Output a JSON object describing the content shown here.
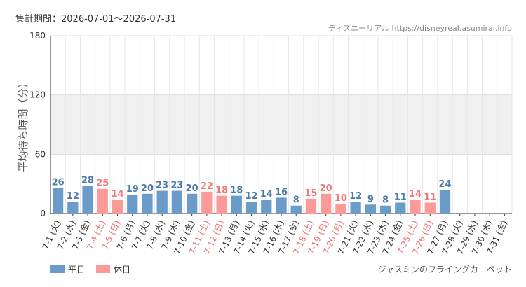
{
  "header": {
    "period": "集計期間：2026-07-01～2026-07-31",
    "site": "ディズニーリアル https://disneyreal.asumirai.info"
  },
  "chart_data": {
    "type": "bar",
    "ylabel": "平均待ち時間（分）",
    "ylim": [
      0,
      180
    ],
    "yticks": [
      "0",
      "60",
      "120",
      "180"
    ],
    "categories": [
      "7-1 (火)",
      "7-2 (水)",
      "7-3 (金)",
      "7-4 (土)",
      "7-5 (日)",
      "7-6 (月)",
      "7-7 (火)",
      "7-8 (水)",
      "7-9 (木)",
      "7-10 (金)",
      "7-11 (土)",
      "7-12 (日)",
      "7-13 (月)",
      "7-14 (火)",
      "7-15 (水)",
      "7-16 (木)",
      "7-17 (金)",
      "7-18 (土)",
      "7-19 (日)",
      "7-20 (月)",
      "7-21 (火)",
      "7-22 (水)",
      "7-23 (木)",
      "7-24 (金)",
      "7-25 (土)",
      "7-26 (日)",
      "7-27 (月)",
      "7-28 (火)",
      "7-29 (水)",
      "7-30 (木)",
      "7-31 (金)"
    ],
    "values": [
      26,
      12,
      28,
      25,
      14,
      19,
      20,
      23,
      23,
      20,
      22,
      18,
      18,
      12,
      14,
      16,
      8,
      15,
      20,
      10,
      12,
      9,
      8,
      11,
      14,
      11,
      24,
      null,
      null,
      null,
      null
    ],
    "day_type": [
      "w",
      "w",
      "w",
      "h",
      "h",
      "w",
      "w",
      "w",
      "w",
      "w",
      "h",
      "h",
      "w",
      "w",
      "w",
      "w",
      "w",
      "h",
      "h",
      "h",
      "w",
      "w",
      "w",
      "w",
      "h",
      "h",
      "w",
      "w",
      "w",
      "w",
      "w"
    ],
    "legend": [
      {
        "key": "w",
        "label": "平日",
        "color": "#6a9bc9"
      },
      {
        "key": "h",
        "label": "休日",
        "color": "#fc9a9a"
      }
    ],
    "label_colors": {
      "w": "#4a79aa",
      "h": "#ef7878"
    },
    "axis_label_colors": {
      "w": "#333333",
      "h": "#ef6f6f"
    },
    "band_color": "#f0f0f0",
    "grid": true,
    "legend_position": "bottom-left",
    "attraction": "ジャスミンのフライングカーペット"
  }
}
